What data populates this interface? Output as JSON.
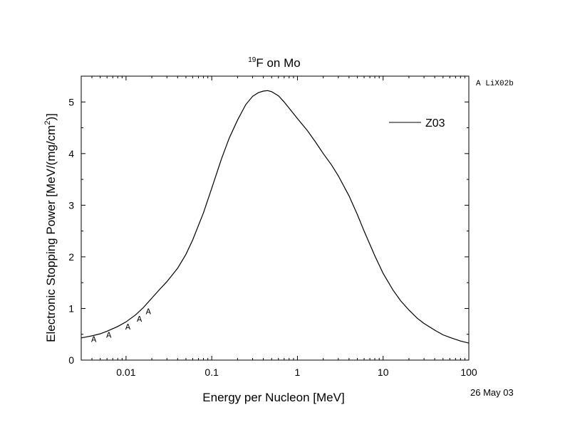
{
  "chart_data": {
    "type": "line",
    "title_sup": "19",
    "title_rest": "F on Mo",
    "xlabel": "Energy per Nucleon [MeV]",
    "ylabel_main": "Electronic Stopping Power [MeV/(mg/cm",
    "ylabel_sup": "2",
    "ylabel_end": ")]",
    "x_scale": "log",
    "xlim": [
      0.003,
      100
    ],
    "ylim": [
      0,
      5.5
    ],
    "x_ticks": [
      0.01,
      0.1,
      1,
      10,
      100
    ],
    "x_tick_labels": [
      "0.01",
      "0.1",
      "1",
      "10",
      "100"
    ],
    "y_ticks": [
      0,
      1,
      2,
      3,
      4,
      5
    ],
    "y_tick_labels": [
      "0",
      "1",
      "2",
      "3",
      "4",
      "5"
    ],
    "grid": false,
    "legend_position": "top-right",
    "series": [
      {
        "name": "Z03",
        "style": "line",
        "color": "#000000",
        "x": [
          0.003,
          0.004,
          0.005,
          0.006,
          0.008,
          0.01,
          0.013,
          0.016,
          0.02,
          0.025,
          0.03,
          0.04,
          0.05,
          0.06,
          0.08,
          0.1,
          0.13,
          0.16,
          0.2,
          0.25,
          0.3,
          0.35,
          0.4,
          0.45,
          0.5,
          0.6,
          0.7,
          0.8,
          1.0,
          1.3,
          1.6,
          2.0,
          2.5,
          3.0,
          4.0,
          5.0,
          6.0,
          8.0,
          10,
          13,
          16,
          20,
          25,
          30,
          40,
          50,
          60,
          80,
          100
        ],
        "y": [
          0.43,
          0.47,
          0.51,
          0.56,
          0.65,
          0.74,
          0.88,
          1.02,
          1.2,
          1.38,
          1.52,
          1.78,
          2.05,
          2.33,
          2.85,
          3.33,
          3.9,
          4.3,
          4.65,
          4.95,
          5.11,
          5.18,
          5.21,
          5.22,
          5.2,
          5.12,
          5.0,
          4.88,
          4.68,
          4.45,
          4.24,
          4.0,
          3.78,
          3.57,
          3.18,
          2.82,
          2.5,
          2.02,
          1.68,
          1.36,
          1.15,
          0.97,
          0.81,
          0.71,
          0.58,
          0.49,
          0.44,
          0.37,
          0.33
        ]
      },
      {
        "name": "A LiX02b",
        "style": "marker",
        "marker": "A",
        "color": "#000000",
        "x": [
          0.0042,
          0.0063,
          0.0105,
          0.0143,
          0.0182
        ],
        "y": [
          0.42,
          0.5,
          0.66,
          0.81,
          0.96
        ]
      }
    ],
    "annotation_legend": "A LiX02b",
    "date_label": "26 May 03"
  }
}
